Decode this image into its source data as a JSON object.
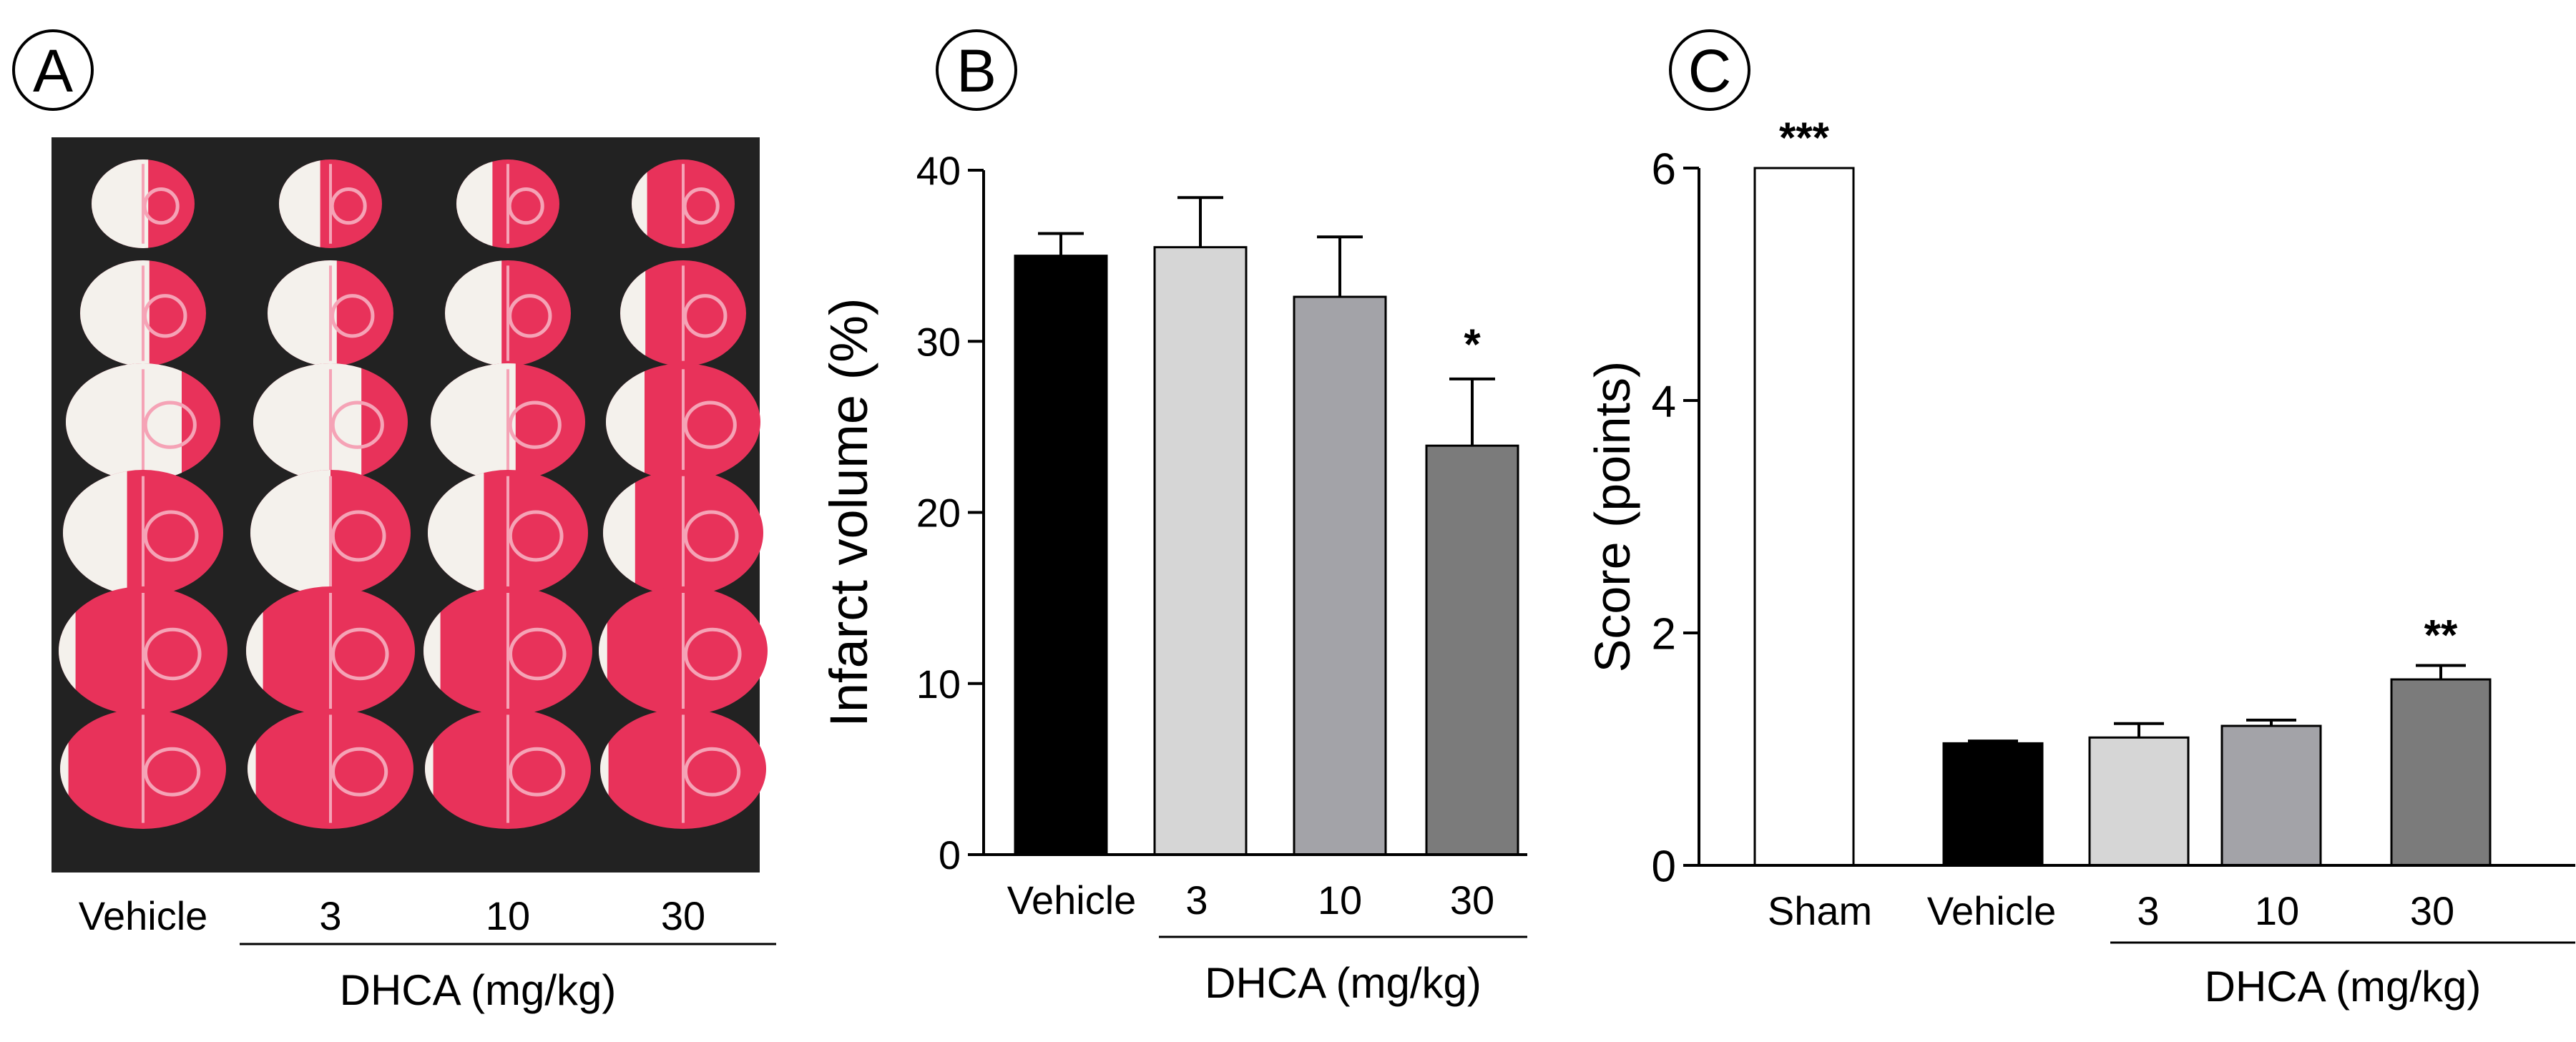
{
  "panels": {
    "a": {
      "letter": "A",
      "groups": [
        "Vehicle",
        "3",
        "10",
        "30"
      ],
      "group_title": "DHCA (mg/kg)",
      "slices_per_column": 6
    }
  },
  "colors": {
    "vehicle": "#000000",
    "dose3": "#d6d6d6",
    "dose10": "#a3a3a8",
    "dose30": "#7b7b7b",
    "sham": "#ffffff",
    "tissue_red": "#e8325a",
    "tissue_pink": "#f5a3b6",
    "infarct_white": "#f4f1ec",
    "photo_bg": "#222222"
  },
  "chart_data": [
    {
      "panel": "B",
      "type": "bar",
      "categories": [
        "Vehicle",
        "3",
        "10",
        "30"
      ],
      "values": [
        35.0,
        35.5,
        32.6,
        23.9
      ],
      "errors": [
        1.3,
        2.9,
        3.5,
        3.9
      ],
      "annotations": [
        "",
        "",
        "",
        "*"
      ],
      "ylabel": "Infarct volume (%)",
      "xlabel": "DHCA (mg/kg)",
      "ylim": [
        0,
        40
      ],
      "yticks": [
        0,
        10,
        20,
        30,
        40
      ]
    },
    {
      "panel": "C",
      "type": "bar",
      "categories": [
        "Sham",
        "Vehicle",
        "3",
        "10",
        "30"
      ],
      "values": [
        6.0,
        1.05,
        1.1,
        1.2,
        1.6
      ],
      "errors": [
        0,
        0.02,
        0.12,
        0.05,
        0.12
      ],
      "annotations": [
        "***",
        "",
        "",
        "",
        "**"
      ],
      "ylabel": "Score (points)",
      "xlabel": "DHCA (mg/kg)",
      "ylim": [
        0,
        6
      ],
      "yticks": [
        0,
        2,
        4,
        6
      ]
    }
  ]
}
